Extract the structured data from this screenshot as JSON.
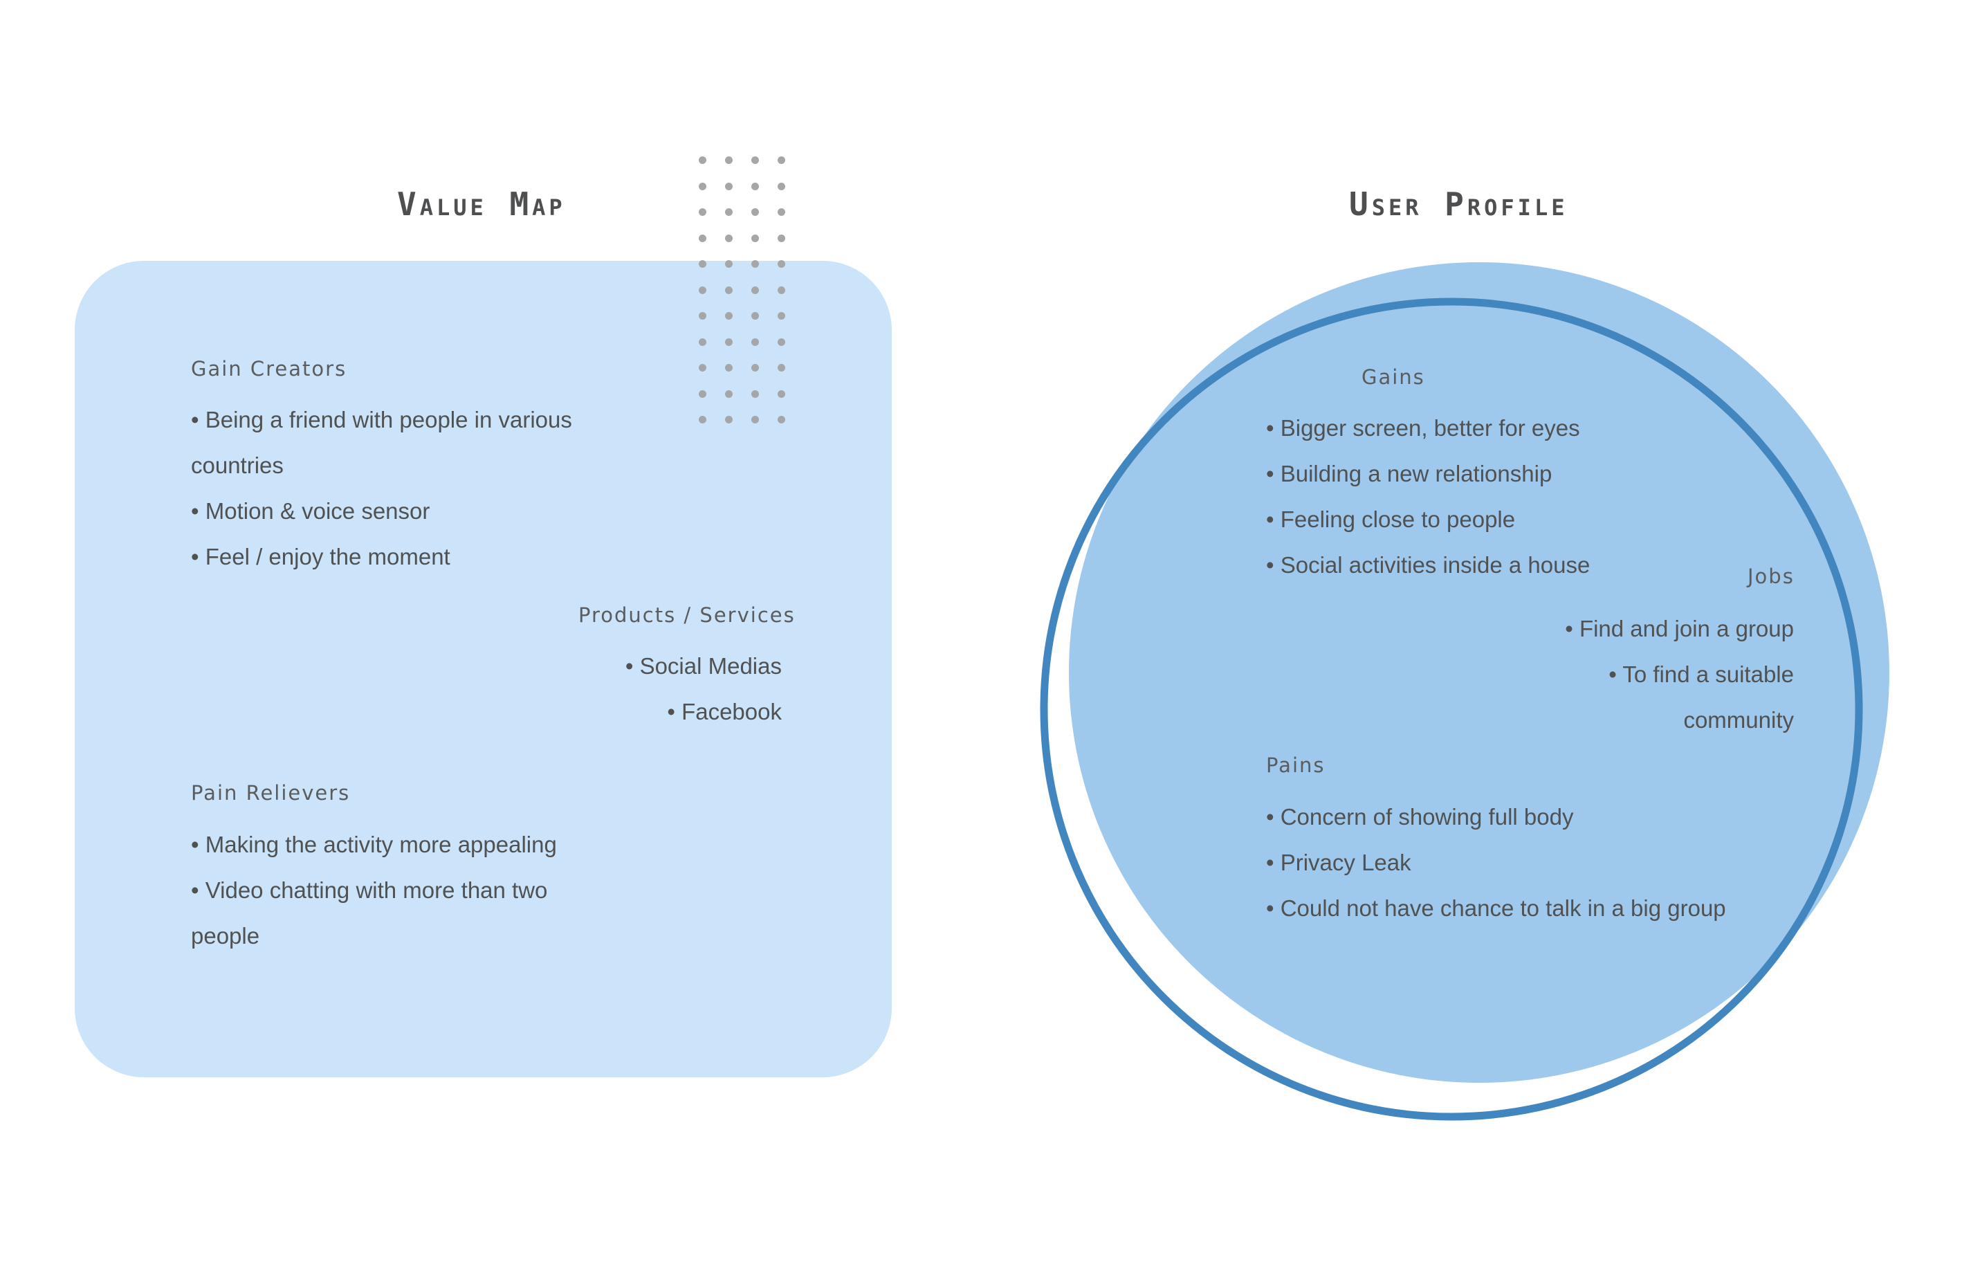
{
  "value_map": {
    "title": "Value Map",
    "gain_creators": {
      "title": "Gain Creators",
      "items": [
        "• Being a friend with people in various countries",
        "• Motion & voice sensor",
        "• Feel / enjoy the moment"
      ]
    },
    "products_services": {
      "title": "Products / Services",
      "items": [
        "• Social Medias",
        "• Facebook"
      ]
    },
    "pain_relievers": {
      "title": "Pain Relievers",
      "items": [
        "• Making the activity more appealing",
        "• Video chatting with more than two people"
      ]
    }
  },
  "user_profile": {
    "title": "User Profile",
    "gains": {
      "title": "Gains",
      "items": [
        "• Bigger screen, better for eyes",
        "• Building a new relationship",
        "• Feeling close to people",
        "• Social activities inside a house"
      ]
    },
    "jobs": {
      "title": "Jobs",
      "items": [
        "• Find and join a group",
        "• To find a suitable community"
      ]
    },
    "pains": {
      "title": "Pains",
      "items": [
        "• Concern of showing full body",
        "• Privacy Leak",
        "• Could not have chance to talk in a big group"
      ]
    }
  },
  "colors": {
    "value_map_fill": "#cbe4f9",
    "profile_circle_fill": "#9fc9ec",
    "profile_ring_stroke": "#4286bf",
    "dot_color": "#a4a6a8",
    "text": "#4f5153"
  }
}
